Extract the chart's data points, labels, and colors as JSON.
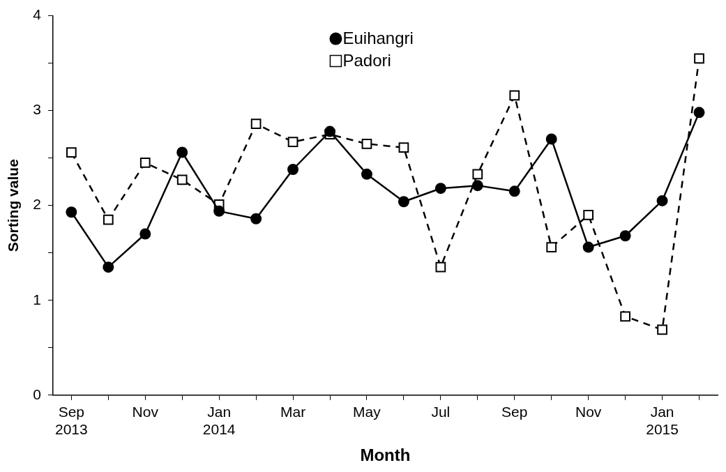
{
  "chart_data": {
    "type": "line",
    "xlabel": "Month",
    "ylabel": "Sorting value",
    "categories": [
      "Sep 2013",
      null,
      "Nov",
      null,
      "Jan 2014",
      null,
      "Mar",
      null,
      "May",
      null,
      "Jul",
      null,
      "Sep",
      null,
      "Nov",
      null,
      "Jan 2015",
      null
    ],
    "series": [
      {
        "name": "Euihangri",
        "color": "#000000",
        "marker": "circle",
        "line_style": "solid",
        "values": [
          1.93,
          1.35,
          1.7,
          2.56,
          1.94,
          1.86,
          2.38,
          2.78,
          2.33,
          2.04,
          2.18,
          2.21,
          2.15,
          2.7,
          1.56,
          1.68,
          2.05,
          2.98
        ]
      },
      {
        "name": "Padori",
        "color": "#000000",
        "marker": "square",
        "line_style": "dashed",
        "values": [
          2.56,
          1.85,
          2.45,
          2.27,
          2.01,
          2.86,
          2.67,
          2.75,
          2.65,
          2.61,
          1.35,
          2.33,
          3.16,
          1.56,
          1.9,
          0.83,
          0.69,
          3.55
        ]
      }
    ],
    "ylim": [
      0,
      4
    ],
    "yticks": [
      0,
      {
        "value": 0.5,
        "label": null
      },
      1,
      {
        "value": 1.5,
        "label": null
      },
      2,
      {
        "value": 2.5,
        "label": null
      },
      3,
      {
        "value": 3.5,
        "label": null
      },
      4
    ],
    "grid": false,
    "legend": "top"
  }
}
